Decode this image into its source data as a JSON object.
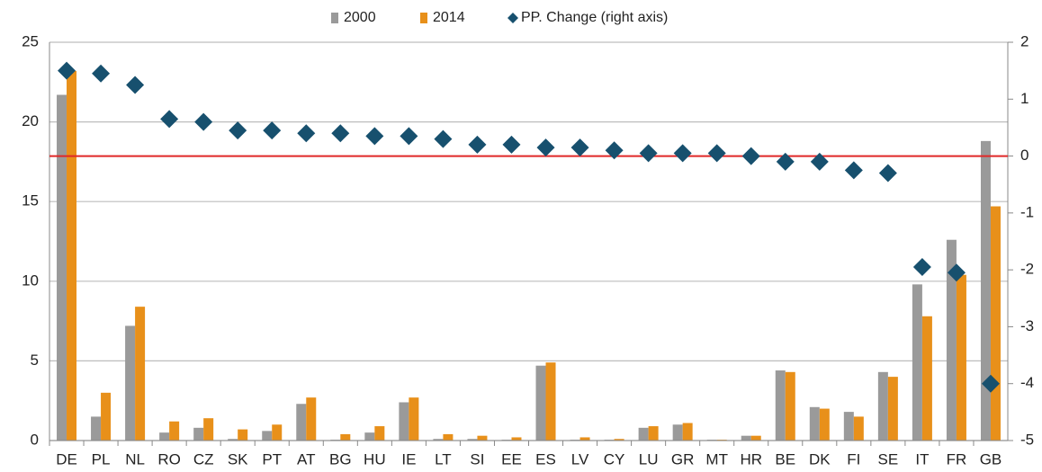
{
  "chart_data": {
    "type": "bar_line",
    "categories": [
      "DE",
      "PL",
      "NL",
      "RO",
      "CZ",
      "SK",
      "PT",
      "AT",
      "BG",
      "HU",
      "IE",
      "LT",
      "SI",
      "EE",
      "ES",
      "LV",
      "CY",
      "LU",
      "GR",
      "MT",
      "HR",
      "BE",
      "DK",
      "FI",
      "SE",
      "IT",
      "FR",
      "GB"
    ],
    "series": [
      {
        "name": "2000",
        "color": "#9a9a9a",
        "kind": "bar",
        "values": [
          21.7,
          1.5,
          7.2,
          0.5,
          0.8,
          0.1,
          0.6,
          2.3,
          0.05,
          0.5,
          2.4,
          0.1,
          0.1,
          0.05,
          4.7,
          0.05,
          0.05,
          0.8,
          1.0,
          0.05,
          0.3,
          4.4,
          2.1,
          1.8,
          4.3,
          9.8,
          12.6,
          18.8
        ]
      },
      {
        "name": "2014",
        "color": "#e8901a",
        "kind": "bar",
        "values": [
          23.2,
          3.0,
          8.4,
          1.2,
          1.4,
          0.7,
          1.0,
          2.7,
          0.4,
          0.9,
          2.7,
          0.4,
          0.3,
          0.2,
          4.9,
          0.2,
          0.1,
          0.9,
          1.1,
          0.05,
          0.3,
          4.3,
          2.0,
          1.5,
          4.0,
          7.8,
          10.4,
          14.7
        ]
      },
      {
        "name": "PP. Change (right axis)",
        "color": "#17506e",
        "kind": "diamond",
        "axis": "y2",
        "values": [
          1.5,
          1.45,
          1.25,
          0.65,
          0.6,
          0.45,
          0.45,
          0.4,
          0.4,
          0.35,
          0.35,
          0.3,
          0.2,
          0.2,
          0.15,
          0.15,
          0.1,
          0.05,
          0.05,
          0.05,
          0.0,
          -0.1,
          -0.1,
          -0.25,
          -0.3,
          -1.95,
          -2.05,
          -4.0
        ]
      }
    ],
    "ylim": [
      0,
      25
    ],
    "yticks": [
      0,
      5,
      10,
      15,
      20,
      25
    ],
    "y2lim": [
      -5,
      2
    ],
    "y2ticks": [
      -5,
      -4,
      -3,
      -2,
      -1,
      0,
      1,
      2
    ],
    "grid": true,
    "legend": "top",
    "zero_line_color": "#e02828"
  }
}
